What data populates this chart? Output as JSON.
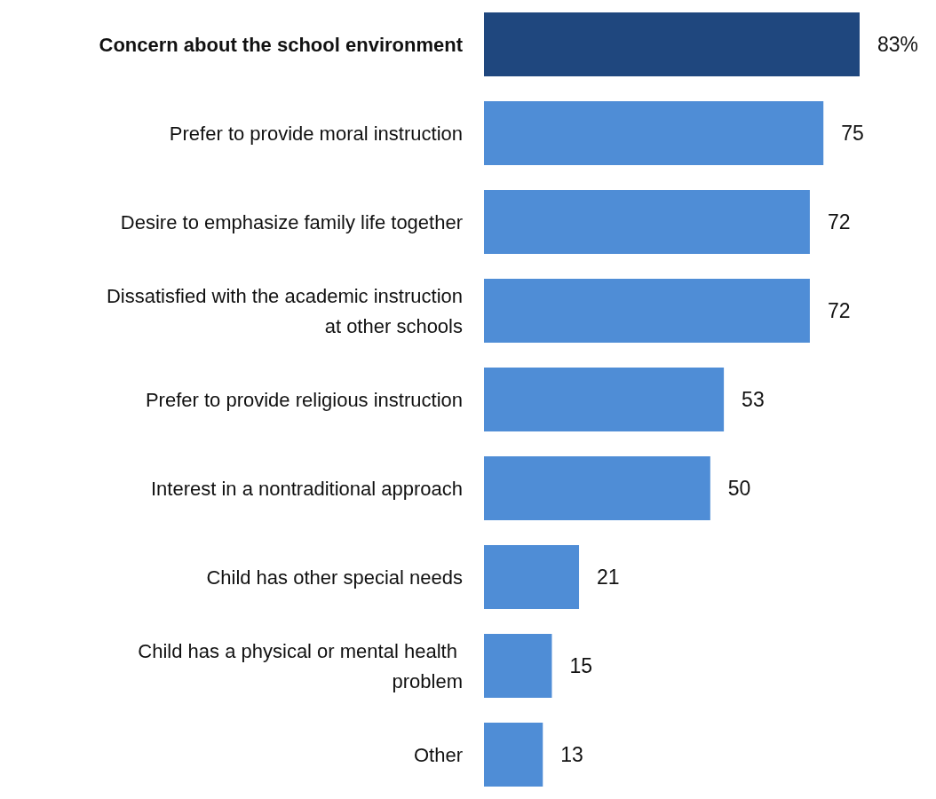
{
  "chart_data": {
    "type": "bar",
    "orientation": "horizontal",
    "categories": [
      "Concern about the school environment",
      "Prefer to provide moral instruction",
      "Desire to emphasize family life together",
      "Dissatisfied with the academic instruction at other schools",
      "Prefer to provide religious instruction",
      "Interest in a nontraditional approach",
      "Child has other special needs",
      "Child has a physical or mental health problem",
      "Other"
    ],
    "values": [
      83,
      75,
      72,
      72,
      53,
      50,
      21,
      15,
      13
    ],
    "colors": [
      "#1f477e",
      "#4f8dd6",
      "#4f8dd6",
      "#4f8dd6",
      "#4f8dd6",
      "#4f8dd6",
      "#4f8dd6",
      "#4f8dd6",
      "#4f8dd6"
    ],
    "value_labels": [
      "83%",
      "75",
      "72",
      "72",
      "53",
      "50",
      "21",
      "15",
      "13"
    ],
    "tick_labels": "y"
  }
}
